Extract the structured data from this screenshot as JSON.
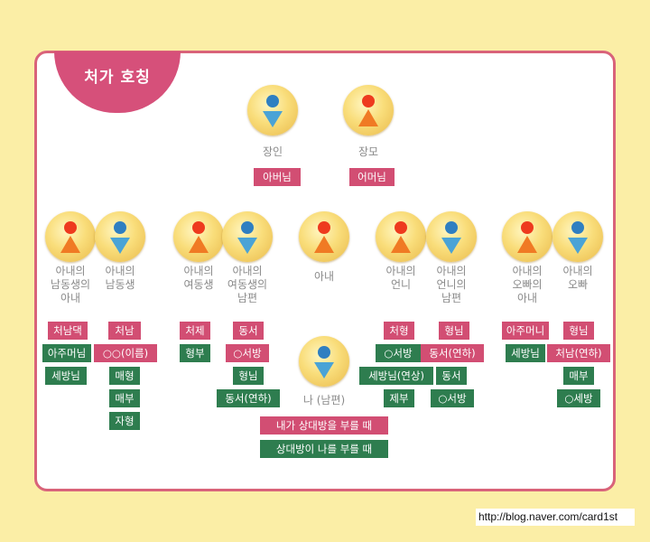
{
  "title": "처가 호칭",
  "url": "http://blog.naver.com/card1st",
  "parents": {
    "father": {
      "label": "장인",
      "call": "아버님"
    },
    "mother": {
      "label": "장모",
      "call": "어머님"
    }
  },
  "groups": {
    "wife_younger_brother_wife": {
      "label": "아내의\n남동생의\n아내",
      "tags": [
        "처남댁",
        "아주머님",
        "세방님"
      ]
    },
    "wife_younger_brother": {
      "label": "아내의\n남동생",
      "tags": [
        "처남",
        "○○(이름)",
        "매형",
        "매부",
        "자형"
      ]
    },
    "wife_younger_sister": {
      "label": "아내의\n여동생",
      "tags": [
        "처제",
        "형부"
      ]
    },
    "wife_younger_sister_husband": {
      "label": "아내의\n여동생의\n남편",
      "tags": [
        "동서",
        "○서방",
        "형님",
        "동서(연하)"
      ]
    },
    "wife": {
      "label": "아내"
    },
    "wife_older_sister": {
      "label": "아내의\n언니",
      "tags": [
        "처형",
        "○서방",
        "세방님(연상)",
        "제부"
      ]
    },
    "wife_older_sister_husband": {
      "label": "아내의\n언니의\n남편",
      "tags": [
        "형님",
        "동서(연하)",
        "동서",
        "○서방"
      ]
    },
    "wife_older_brother_wife": {
      "label": "아내의\n오빠의\n아내",
      "tags": [
        "아주머니",
        "세방님"
      ]
    },
    "wife_older_brother": {
      "label": "아내의\n오빠",
      "tags": [
        "형님",
        "처남(연하)",
        "매부",
        "○세방"
      ]
    }
  },
  "me": {
    "label": "나 (남편)",
    "legend_pink": "내가 상대방을 부를 때",
    "legend_green": "상대방이 나를 부를 때"
  },
  "colors": {
    "pink": "#d24e73",
    "green": "#2e7d4f",
    "male_head": "#2f7fc1",
    "male_body": "#4aa3d6",
    "female_head": "#ee3a1e",
    "female_body": "#f07a24"
  },
  "icons": {
    "male": "man-icon",
    "female": "woman-icon"
  }
}
